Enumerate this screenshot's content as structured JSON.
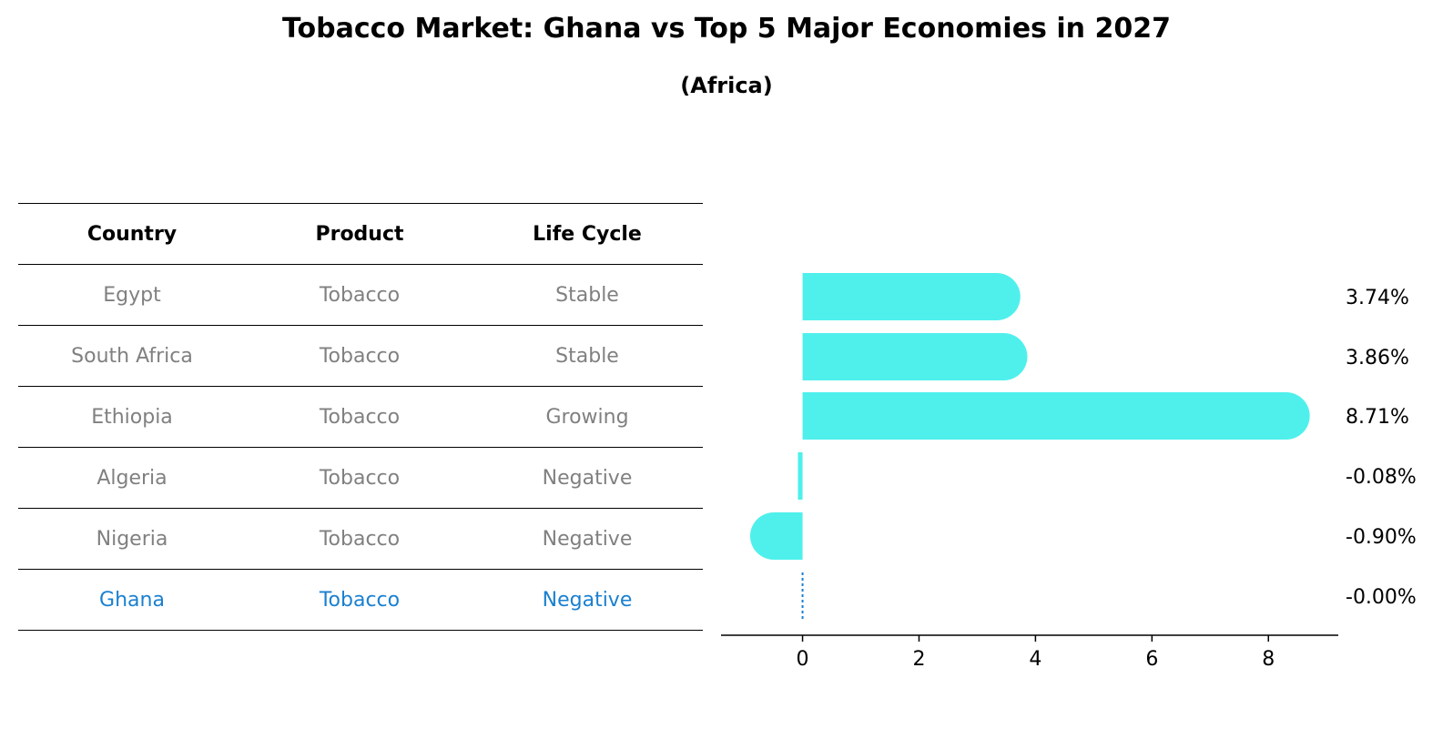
{
  "title": "Tobacco Market: Ghana vs Top 5 Major Economies in 2027",
  "subtitle": "(Africa)",
  "table": {
    "headers": [
      "Country",
      "Product",
      "Life Cycle"
    ],
    "rows": [
      [
        "Egypt",
        "Tobacco",
        "Stable"
      ],
      [
        "South Africa",
        "Tobacco",
        "Stable"
      ],
      [
        "Ethiopia",
        "Tobacco",
        "Growing"
      ],
      [
        "Algeria",
        "Tobacco",
        "Negative"
      ],
      [
        "Nigeria",
        "Tobacco",
        "Negative"
      ],
      [
        "Ghana",
        "Tobacco",
        "Negative"
      ]
    ],
    "highlight_row": 5
  },
  "colors": {
    "bar": "#4ff0ec",
    "highlight": "#1a80d0",
    "muted_text": "#808080"
  },
  "chart_data": {
    "type": "bar",
    "orientation": "horizontal",
    "categories": [
      "Egypt",
      "South Africa",
      "Ethiopia",
      "Algeria",
      "Nigeria",
      "Ghana"
    ],
    "values": [
      3.74,
      3.86,
      8.71,
      -0.08,
      -0.9,
      -0.0
    ],
    "labels": [
      "3.74%",
      "3.86%",
      "8.71%",
      "-0.08%",
      "-0.90%",
      "-0.00%"
    ],
    "xticks": [
      0,
      2,
      4,
      6,
      8
    ],
    "xlim": [
      -1.4,
      9.2
    ],
    "grid": false
  }
}
